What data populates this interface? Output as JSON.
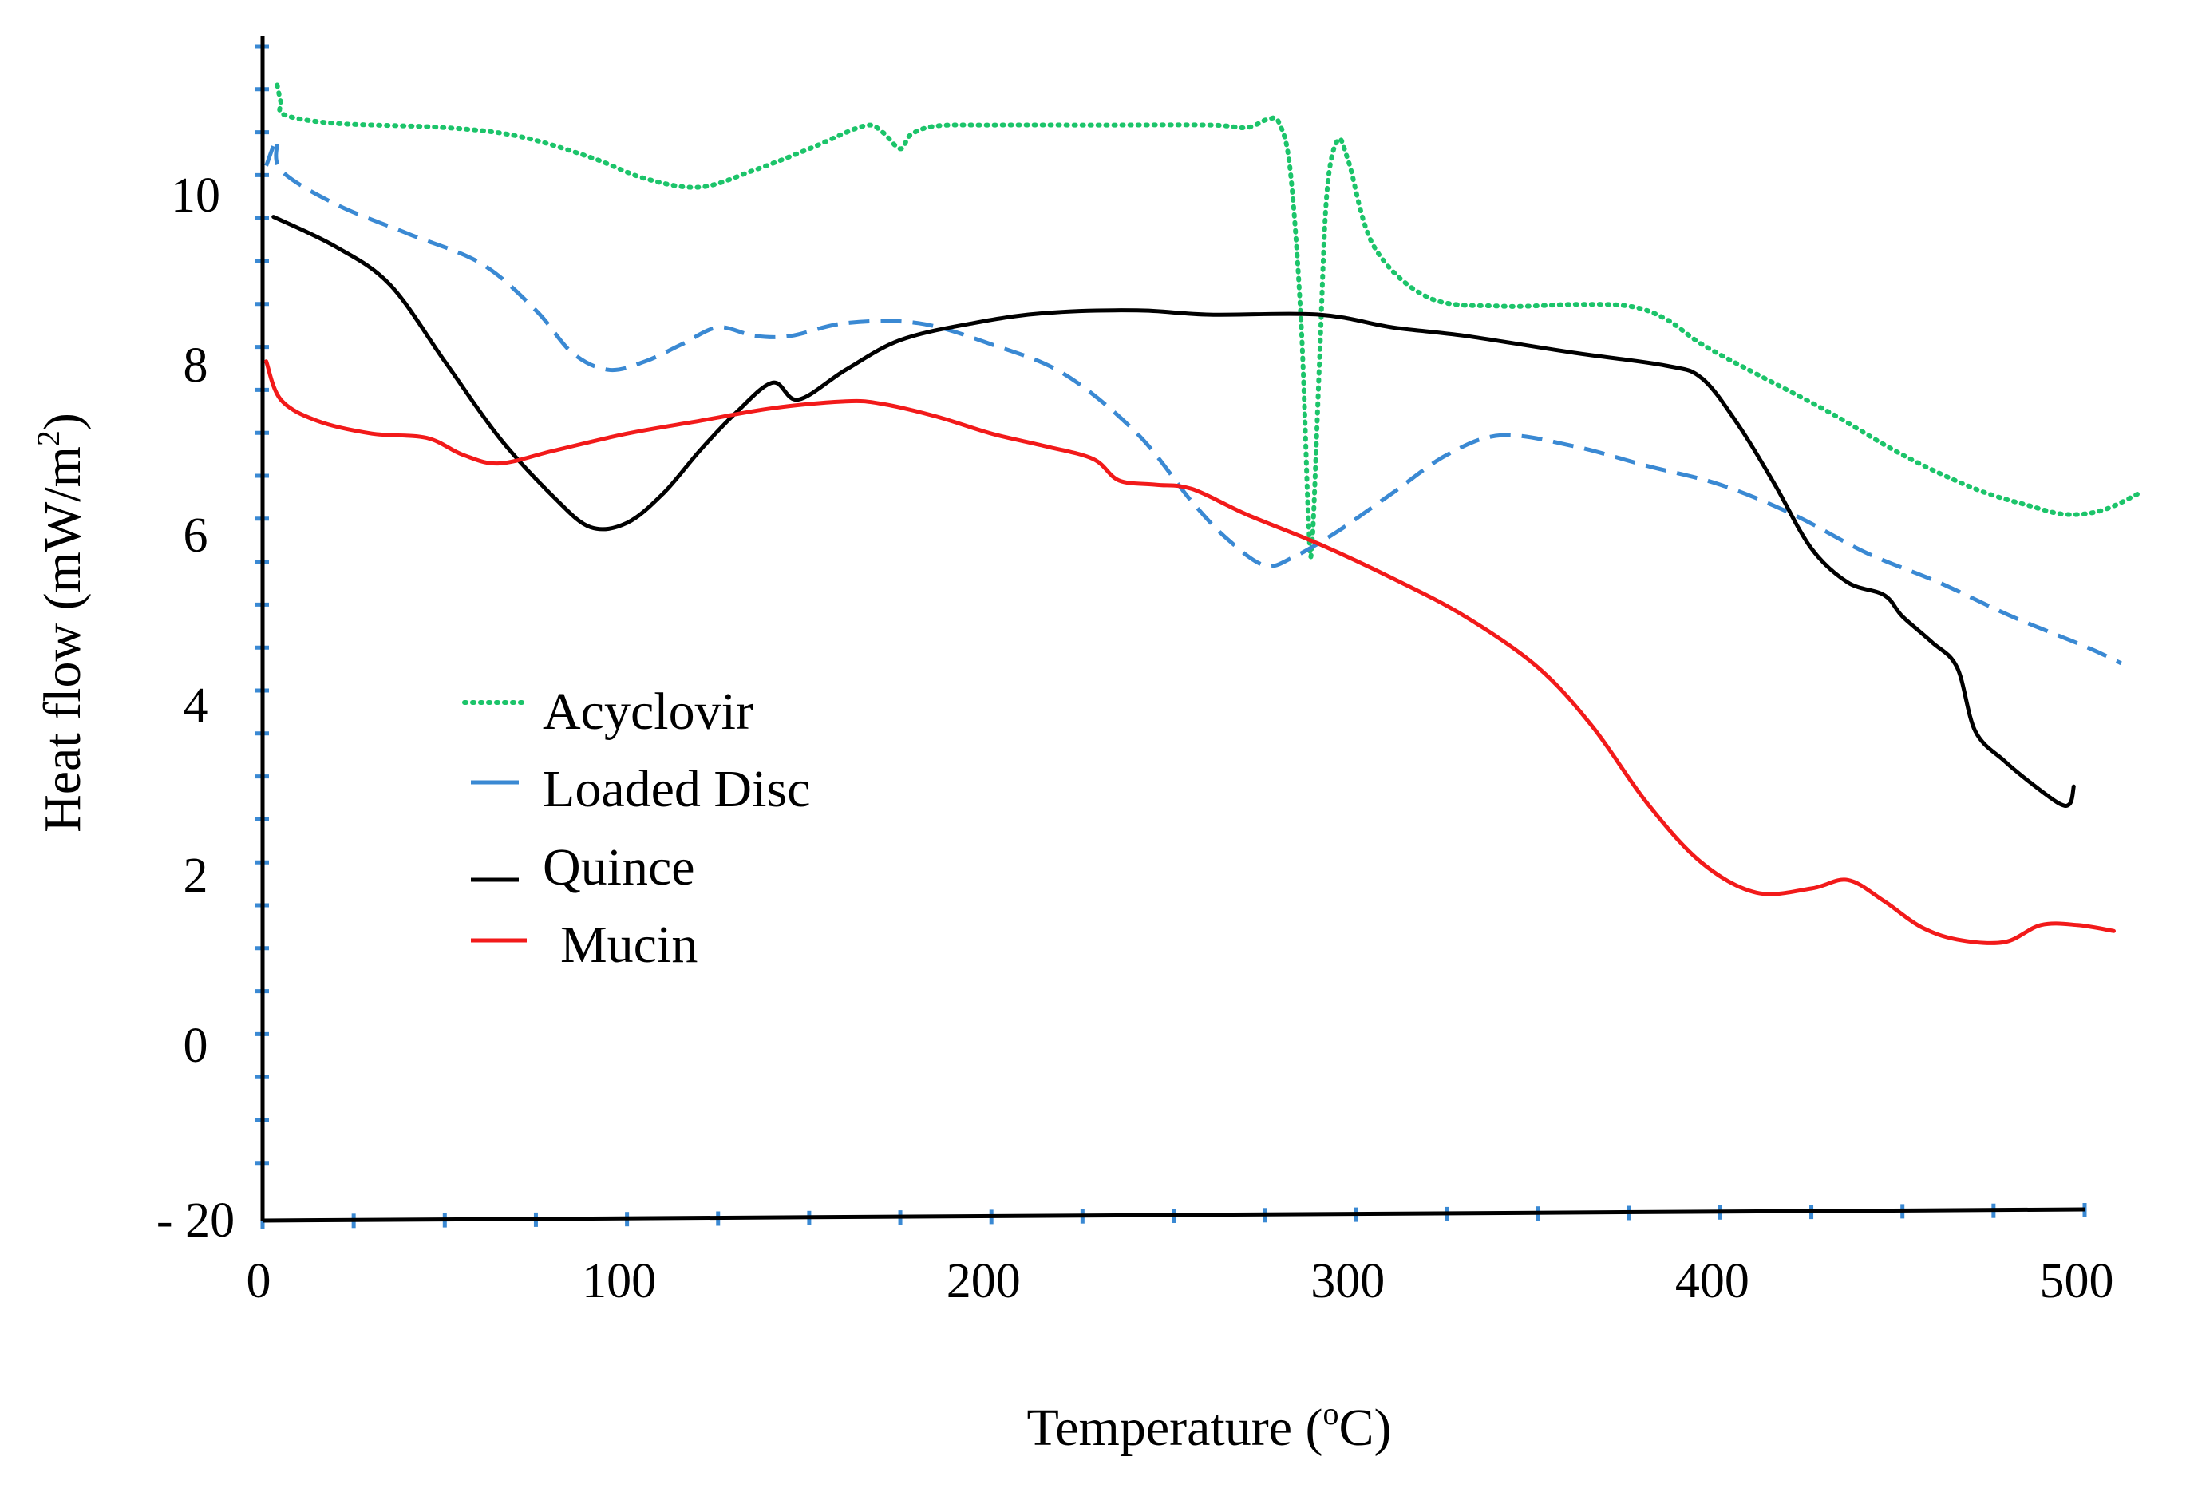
{
  "chart_data": {
    "type": "line",
    "title": "",
    "xlabel": "Temperature (",
    "xlabel_sup": "o",
    "xlabel_tail": "C)",
    "ylabel": "Heat flow (mW/m",
    "ylabel_sup": "2",
    "ylabel_tail": ")",
    "xlim": [
      0,
      510
    ],
    "ylim": [
      -20,
      12
    ],
    "grid": false,
    "legend_position": "left-center",
    "x_tick_values": [
      0,
      100,
      200,
      300,
      400,
      500
    ],
    "x_tick_labels": [
      "0",
      "100",
      "200",
      "300",
      "400",
      "500"
    ],
    "y_ticks": [
      {
        "label": "- 20",
        "value": -20
      },
      {
        "label": "0",
        "value": 0
      },
      {
        "label": "2",
        "value": 2
      },
      {
        "label": "4",
        "value": 4
      },
      {
        "label": "6",
        "value": 6
      },
      {
        "label": "8",
        "value": 8
      },
      {
        "label": "10",
        "value": 10
      }
    ],
    "series": [
      {
        "name": "Acyclovir",
        "color": "#1cc46a",
        "dash": "dotted",
        "points": [
          [
            4,
            11.3
          ],
          [
            5,
            11.1
          ],
          [
            6,
            10.95
          ],
          [
            20,
            10.85
          ],
          [
            50,
            10.8
          ],
          [
            70,
            10.7
          ],
          [
            90,
            10.45
          ],
          [
            105,
            10.2
          ],
          [
            120,
            10.1
          ],
          [
            135,
            10.3
          ],
          [
            150,
            10.55
          ],
          [
            165,
            10.82
          ],
          [
            170,
            10.75
          ],
          [
            175,
            10.55
          ],
          [
            178,
            10.72
          ],
          [
            185,
            10.82
          ],
          [
            200,
            10.83
          ],
          [
            230,
            10.83
          ],
          [
            260,
            10.83
          ],
          [
            270,
            10.8
          ],
          [
            276,
            10.9
          ],
          [
            279,
            10.85
          ],
          [
            282,
            10.3
          ],
          [
            285,
            8.5
          ],
          [
            287,
            6.2
          ],
          [
            288,
            5.9
          ],
          [
            290,
            8.0
          ],
          [
            292,
            10.0
          ],
          [
            295,
            10.65
          ],
          [
            298,
            10.4
          ],
          [
            305,
            9.4
          ],
          [
            320,
            8.8
          ],
          [
            340,
            8.7
          ],
          [
            360,
            8.72
          ],
          [
            375,
            8.7
          ],
          [
            385,
            8.55
          ],
          [
            395,
            8.25
          ],
          [
            410,
            7.9
          ],
          [
            430,
            7.45
          ],
          [
            450,
            6.95
          ],
          [
            470,
            6.55
          ],
          [
            485,
            6.35
          ],
          [
            495,
            6.25
          ],
          [
            505,
            6.3
          ],
          [
            515,
            6.5
          ]
        ]
      },
      {
        "name": "Loaded Disc",
        "color": "#3a89d3",
        "dash": "dashed",
        "points": [
          [
            1,
            10.35
          ],
          [
            4,
            10.65
          ],
          [
            5,
            10.3
          ],
          [
            20,
            9.9
          ],
          [
            40,
            9.55
          ],
          [
            60,
            9.2
          ],
          [
            75,
            8.65
          ],
          [
            85,
            8.15
          ],
          [
            95,
            7.95
          ],
          [
            105,
            8.05
          ],
          [
            115,
            8.25
          ],
          [
            125,
            8.45
          ],
          [
            135,
            8.35
          ],
          [
            145,
            8.35
          ],
          [
            160,
            8.5
          ],
          [
            180,
            8.5
          ],
          [
            200,
            8.25
          ],
          [
            220,
            7.9
          ],
          [
            240,
            7.2
          ],
          [
            255,
            6.4
          ],
          [
            265,
            5.95
          ],
          [
            275,
            5.65
          ],
          [
            283,
            5.75
          ],
          [
            295,
            6.05
          ],
          [
            310,
            6.5
          ],
          [
            325,
            6.95
          ],
          [
            340,
            7.18
          ],
          [
            360,
            7.05
          ],
          [
            380,
            6.82
          ],
          [
            400,
            6.6
          ],
          [
            420,
            6.25
          ],
          [
            440,
            5.8
          ],
          [
            460,
            5.45
          ],
          [
            480,
            5.05
          ],
          [
            500,
            4.7
          ],
          [
            510,
            4.5
          ]
        ]
      },
      {
        "name": "Quince",
        "color": "#000000",
        "dash": "solid",
        "points": [
          [
            3,
            9.75
          ],
          [
            20,
            9.4
          ],
          [
            35,
            8.95
          ],
          [
            50,
            8.05
          ],
          [
            65,
            7.15
          ],
          [
            80,
            6.45
          ],
          [
            90,
            6.1
          ],
          [
            100,
            6.15
          ],
          [
            110,
            6.5
          ],
          [
            120,
            7.0
          ],
          [
            130,
            7.45
          ],
          [
            140,
            7.8
          ],
          [
            147,
            7.6
          ],
          [
            160,
            7.95
          ],
          [
            175,
            8.3
          ],
          [
            195,
            8.5
          ],
          [
            215,
            8.62
          ],
          [
            240,
            8.65
          ],
          [
            260,
            8.6
          ],
          [
            290,
            8.6
          ],
          [
            310,
            8.45
          ],
          [
            330,
            8.35
          ],
          [
            360,
            8.15
          ],
          [
            385,
            8.0
          ],
          [
            395,
            7.85
          ],
          [
            405,
            7.3
          ],
          [
            415,
            6.6
          ],
          [
            425,
            5.85
          ],
          [
            435,
            5.45
          ],
          [
            445,
            5.3
          ],
          [
            450,
            5.05
          ],
          [
            458,
            4.75
          ],
          [
            465,
            4.45
          ],
          [
            470,
            3.7
          ],
          [
            478,
            3.35
          ],
          [
            485,
            3.1
          ],
          [
            493,
            2.85
          ],
          [
            496,
            2.85
          ],
          [
            497,
            3.05
          ]
        ]
      },
      {
        "name": "Mucin",
        "color": "#f21a1a",
        "dash": "solid",
        "points": [
          [
            1,
            8.05
          ],
          [
            5,
            7.6
          ],
          [
            15,
            7.35
          ],
          [
            30,
            7.2
          ],
          [
            45,
            7.15
          ],
          [
            55,
            6.95
          ],
          [
            65,
            6.85
          ],
          [
            80,
            7.0
          ],
          [
            100,
            7.2
          ],
          [
            120,
            7.35
          ],
          [
            140,
            7.5
          ],
          [
            160,
            7.58
          ],
          [
            170,
            7.55
          ],
          [
            185,
            7.4
          ],
          [
            200,
            7.2
          ],
          [
            215,
            7.05
          ],
          [
            228,
            6.9
          ],
          [
            235,
            6.65
          ],
          [
            245,
            6.6
          ],
          [
            255,
            6.55
          ],
          [
            270,
            6.25
          ],
          [
            290,
            5.9
          ],
          [
            310,
            5.5
          ],
          [
            330,
            5.05
          ],
          [
            350,
            4.45
          ],
          [
            365,
            3.75
          ],
          [
            380,
            2.85
          ],
          [
            395,
            2.15
          ],
          [
            410,
            1.8
          ],
          [
            425,
            1.85
          ],
          [
            435,
            1.95
          ],
          [
            445,
            1.7
          ],
          [
            455,
            1.4
          ],
          [
            465,
            1.25
          ],
          [
            478,
            1.22
          ],
          [
            488,
            1.42
          ],
          [
            498,
            1.42
          ],
          [
            508,
            1.35
          ]
        ]
      }
    ]
  }
}
